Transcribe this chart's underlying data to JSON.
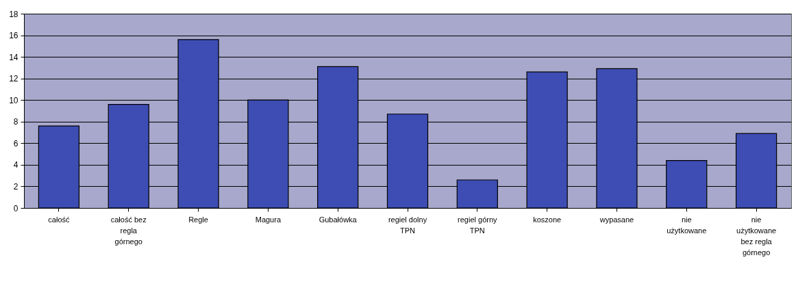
{
  "chart_data": {
    "type": "bar",
    "categories": [
      "całość",
      "całość bez regla górnego",
      "Regle",
      "Magura",
      "Gubałówka",
      "regiel dolny TPN",
      "regiel górny TPN",
      "koszone",
      "wypasane",
      "nie użytkowane",
      "nie użytkowane bez regla górnego"
    ],
    "values": [
      7.6,
      9.6,
      15.6,
      10.0,
      13.1,
      8.7,
      2.6,
      12.6,
      12.9,
      4.4,
      6.9
    ],
    "color": "#3d4db3",
    "ylim": [
      0,
      18
    ],
    "yticks": [
      0,
      2,
      4,
      6,
      8,
      10,
      12,
      14,
      16,
      18
    ],
    "grid": "y"
  }
}
